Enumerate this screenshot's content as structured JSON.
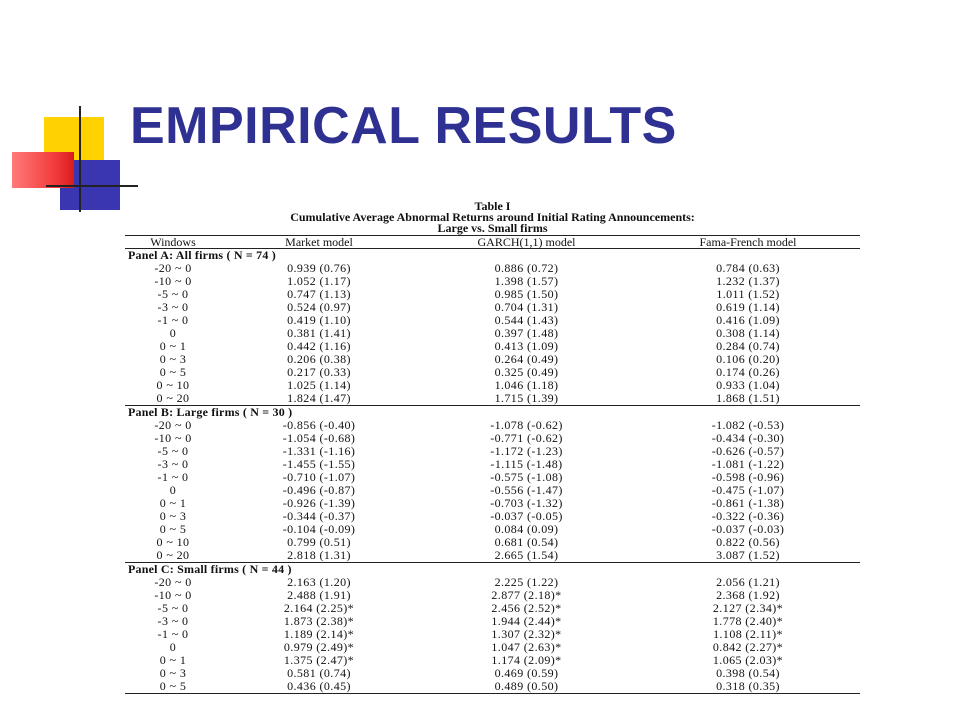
{
  "slide": {
    "title": "EMPIRICAL RESULTS"
  },
  "table": {
    "label": "Table I",
    "caption_line1": "Cumulative Average Abnormal Returns around Initial Rating Announcements:",
    "caption_line2": "Large vs. Small firms",
    "headers": [
      "Windows",
      "Market model",
      "GARCH(1,1) model",
      "Fama-French model"
    ],
    "panels": [
      {
        "title": "Panel A: All firms ( N = 74 )",
        "rows": [
          [
            "-20 ~ 0",
            "0.939 (0.76)",
            "0.886 (0.72)",
            "0.784 (0.63)"
          ],
          [
            "-10 ~ 0",
            "1.052 (1.17)",
            "1.398 (1.57)",
            "1.232 (1.37)"
          ],
          [
            "-5 ~ 0",
            "0.747 (1.13)",
            "0.985 (1.50)",
            "1.011 (1.52)"
          ],
          [
            "-3 ~ 0",
            "0.524 (0.97)",
            "0.704 (1.31)",
            "0.619 (1.14)"
          ],
          [
            "-1 ~ 0",
            "0.419 (1.10)",
            "0.544 (1.43)",
            "0.416 (1.09)"
          ],
          [
            "0",
            "0.381 (1.41)",
            "0.397 (1.48)",
            "0.308 (1.14)"
          ],
          [
            "0 ~ 1",
            "0.442 (1.16)",
            "0.413 (1.09)",
            "0.284 (0.74)"
          ],
          [
            "0 ~ 3",
            "0.206 (0.38)",
            "0.264 (0.49)",
            "0.106 (0.20)"
          ],
          [
            "0 ~ 5",
            "0.217 (0.33)",
            "0.325 (0.49)",
            "0.174 (0.26)"
          ],
          [
            "0 ~ 10",
            "1.025 (1.14)",
            "1.046 (1.18)",
            "0.933 (1.04)"
          ],
          [
            "0 ~ 20",
            "1.824 (1.47)",
            "1.715 (1.39)",
            "1.868 (1.51)"
          ]
        ]
      },
      {
        "title": "Panel B: Large firms ( N = 30 )",
        "rows": [
          [
            "-20 ~ 0",
            "-0.856 (-0.40)",
            "-1.078 (-0.62)",
            "-1.082 (-0.53)"
          ],
          [
            "-10 ~ 0",
            "-1.054 (-0.68)",
            "-0.771 (-0.62)",
            "-0.434 (-0.30)"
          ],
          [
            "-5 ~ 0",
            "-1.331 (-1.16)",
            "-1.172 (-1.23)",
            "-0.626 (-0.57)"
          ],
          [
            "-3 ~ 0",
            "-1.455 (-1.55)",
            "-1.115 (-1.48)",
            "-1.081 (-1.22)"
          ],
          [
            "-1 ~ 0",
            "-0.710 (-1.07)",
            "-0.575 (-1.08)",
            "-0.598 (-0.96)"
          ],
          [
            "0",
            "-0.496 (-0.87)",
            "-0.556 (-1.47)",
            "-0.475 (-1.07)"
          ],
          [
            "0 ~ 1",
            "-0.926 (-1.39)",
            "-0.703 (-1.32)",
            "-0.861 (-1.38)"
          ],
          [
            "0 ~ 3",
            "-0.344 (-0.37)",
            "-0.037 (-0.05)",
            "-0.322 (-0.36)"
          ],
          [
            "0 ~ 5",
            "-0.104 (-0.09)",
            "0.084 (0.09)",
            "-0.037 (-0.03)"
          ],
          [
            "0 ~ 10",
            "0.799 (0.51)",
            "0.681 (0.54)",
            "0.822 (0.56)"
          ],
          [
            "0 ~ 20",
            "2.818 (1.31)",
            "2.665 (1.54)",
            "3.087 (1.52)"
          ]
        ]
      },
      {
        "title": "Panel C: Small firms ( N = 44 )",
        "rows": [
          [
            "-20 ~ 0",
            "2.163 (1.20)",
            "2.225 (1.22)",
            "2.056 (1.21)"
          ],
          [
            "-10 ~ 0",
            "2.488 (1.91)",
            "2.877 (2.18)*",
            "2.368 (1.92)"
          ],
          [
            "-5 ~ 0",
            "2.164 (2.25)*",
            "2.456 (2.52)*",
            "2.127 (2.34)*"
          ],
          [
            "-3 ~ 0",
            "1.873 (2.38)*",
            "1.944 (2.44)*",
            "1.778 (2.40)*"
          ],
          [
            "-1 ~ 0",
            "1.189 (2.14)*",
            "1.307 (2.32)*",
            "1.108 (2.11)*"
          ],
          [
            "0",
            "0.979 (2.49)*",
            "1.047 (2.63)*",
            "0.842 (2.27)*"
          ],
          [
            "0 ~ 1",
            "1.375 (2.47)*",
            "1.174 (2.09)*",
            "1.065 (2.03)*"
          ],
          [
            "0 ~ 3",
            "0.581 (0.74)",
            "0.469 (0.59)",
            "0.398 (0.54)"
          ],
          [
            "0 ~ 5",
            "0.436 (0.45)",
            "0.489 (0.50)",
            "0.318 (0.35)"
          ]
        ]
      }
    ]
  }
}
